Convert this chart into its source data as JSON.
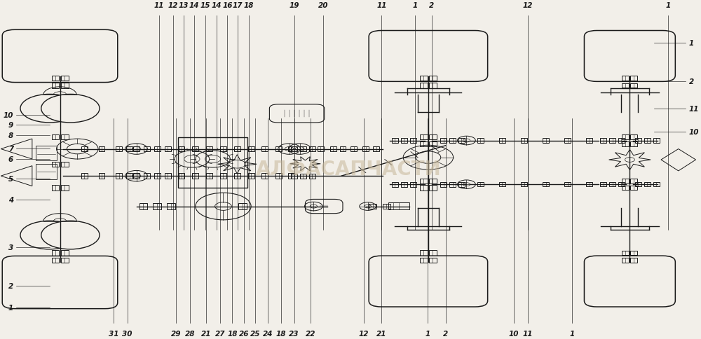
{
  "bg_color": "#f2efe9",
  "line_color": "#1a1a1a",
  "watermark_text": "АЛФАСАПЧАСТИ",
  "watermark_color": "#c8b89a",
  "fig_width": 10.0,
  "fig_height": 4.85,
  "top_labels": [
    [
      "11",
      0.228
    ],
    [
      "12",
      0.248
    ],
    [
      "13",
      0.263
    ],
    [
      "14",
      0.278
    ],
    [
      "15",
      0.294
    ],
    [
      "14",
      0.31
    ],
    [
      "16",
      0.326
    ],
    [
      "17",
      0.341
    ],
    [
      "18",
      0.357
    ],
    [
      "19",
      0.422
    ],
    [
      "20",
      0.464
    ],
    [
      "11",
      0.548
    ],
    [
      "1",
      0.596
    ],
    [
      "2",
      0.62
    ],
    [
      "12",
      0.758
    ],
    [
      "1",
      0.96
    ]
  ],
  "left_labels": [
    [
      "1",
      0.09
    ],
    [
      "2",
      0.155
    ],
    [
      "3",
      0.268
    ],
    [
      "4",
      0.41
    ],
    [
      "5",
      0.472
    ],
    [
      "6",
      0.53
    ],
    [
      "7",
      0.562
    ],
    [
      "8",
      0.6
    ],
    [
      "9",
      0.632
    ],
    [
      "10",
      0.66
    ]
  ],
  "right_labels": [
    [
      "10",
      0.61
    ],
    [
      "11",
      0.68
    ],
    [
      "2",
      0.76
    ],
    [
      "1",
      0.875
    ]
  ],
  "bottom_labels": [
    [
      "31",
      0.162
    ],
    [
      "30",
      0.182
    ],
    [
      "29",
      0.252
    ],
    [
      "28",
      0.272
    ],
    [
      "21",
      0.295
    ],
    [
      "27",
      0.316
    ],
    [
      "18",
      0.333
    ],
    [
      "26",
      0.35
    ],
    [
      "25",
      0.366
    ],
    [
      "24",
      0.384
    ],
    [
      "18",
      0.403
    ],
    [
      "23",
      0.422
    ],
    [
      "22",
      0.446
    ],
    [
      "12",
      0.522
    ],
    [
      "21",
      0.548
    ],
    [
      "1",
      0.614
    ],
    [
      "2",
      0.64
    ],
    [
      "10",
      0.738
    ],
    [
      "11",
      0.758
    ],
    [
      "1",
      0.822
    ]
  ]
}
